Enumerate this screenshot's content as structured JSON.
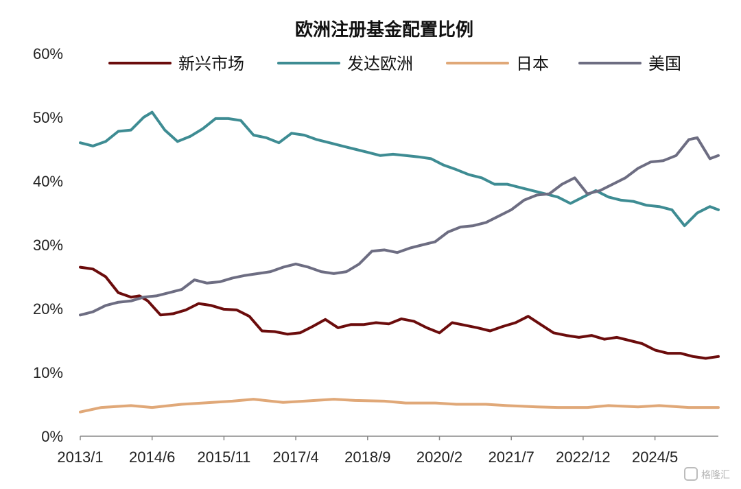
{
  "chart_data": {
    "type": "line",
    "title": "欧洲注册基金配置比例",
    "xlabel": "",
    "ylabel": "",
    "x_start": "2013/1",
    "x_end": "2025/8",
    "x_step": "month",
    "x_tick_labels": [
      "2013/1",
      "2014/6",
      "2015/11",
      "2017/4",
      "2018/9",
      "2020/2",
      "2021/7",
      "2022/12",
      "2024/5"
    ],
    "y_tick_labels": [
      "0%",
      "10%",
      "20%",
      "30%",
      "40%",
      "50%",
      "60%"
    ],
    "ylim": [
      0,
      60
    ],
    "y_unit": "%",
    "grid": false,
    "legend_position": "top",
    "series": [
      {
        "name": "新兴市场",
        "color": "#6b0c0c",
        "points": [
          [
            "2013/1",
            26.5
          ],
          [
            "2013/4",
            26.2
          ],
          [
            "2013/7",
            25.0
          ],
          [
            "2013/10",
            22.5
          ],
          [
            "2014/1",
            21.8
          ],
          [
            "2014/3",
            22.0
          ],
          [
            "2014/5",
            21.2
          ],
          [
            "2014/8",
            19.0
          ],
          [
            "2014/11",
            19.2
          ],
          [
            "2015/2",
            19.8
          ],
          [
            "2015/5",
            20.8
          ],
          [
            "2015/8",
            20.5
          ],
          [
            "2015/11",
            19.9
          ],
          [
            "2016/2",
            19.8
          ],
          [
            "2016/5",
            18.8
          ],
          [
            "2016/8",
            16.5
          ],
          [
            "2016/11",
            16.4
          ],
          [
            "2017/2",
            16.0
          ],
          [
            "2017/5",
            16.2
          ],
          [
            "2017/8",
            17.2
          ],
          [
            "2017/11",
            18.3
          ],
          [
            "2018/2",
            17.0
          ],
          [
            "2018/5",
            17.5
          ],
          [
            "2018/8",
            17.5
          ],
          [
            "2018/11",
            17.8
          ],
          [
            "2019/2",
            17.6
          ],
          [
            "2019/5",
            18.4
          ],
          [
            "2019/8",
            18.0
          ],
          [
            "2019/11",
            17.0
          ],
          [
            "2020/2",
            16.2
          ],
          [
            "2020/5",
            17.8
          ],
          [
            "2020/8",
            17.4
          ],
          [
            "2020/11",
            17.0
          ],
          [
            "2021/2",
            16.5
          ],
          [
            "2021/5",
            17.2
          ],
          [
            "2021/8",
            17.8
          ],
          [
            "2021/11",
            18.8
          ],
          [
            "2022/2",
            17.5
          ],
          [
            "2022/5",
            16.2
          ],
          [
            "2022/8",
            15.8
          ],
          [
            "2022/11",
            15.5
          ],
          [
            "2023/2",
            15.8
          ],
          [
            "2023/5",
            15.2
          ],
          [
            "2023/8",
            15.5
          ],
          [
            "2023/11",
            15.0
          ],
          [
            "2024/2",
            14.5
          ],
          [
            "2024/5",
            13.5
          ],
          [
            "2024/8",
            13.0
          ],
          [
            "2024/11",
            13.0
          ],
          [
            "2025/2",
            12.5
          ],
          [
            "2025/5",
            12.2
          ],
          [
            "2025/8",
            12.5
          ]
        ]
      },
      {
        "name": "发达欧洲",
        "color": "#3e8c93",
        "points": [
          [
            "2013/1",
            46.0
          ],
          [
            "2013/4",
            45.5
          ],
          [
            "2013/7",
            46.2
          ],
          [
            "2013/10",
            47.8
          ],
          [
            "2014/1",
            48.0
          ],
          [
            "2014/4",
            50.0
          ],
          [
            "2014/6",
            50.8
          ],
          [
            "2014/9",
            48.0
          ],
          [
            "2014/12",
            46.2
          ],
          [
            "2015/3",
            47.0
          ],
          [
            "2015/6",
            48.2
          ],
          [
            "2015/9",
            49.8
          ],
          [
            "2015/12",
            49.8
          ],
          [
            "2016/3",
            49.5
          ],
          [
            "2016/6",
            47.2
          ],
          [
            "2016/9",
            46.8
          ],
          [
            "2016/12",
            46.0
          ],
          [
            "2017/3",
            47.5
          ],
          [
            "2017/6",
            47.2
          ],
          [
            "2017/9",
            46.5
          ],
          [
            "2017/12",
            46.0
          ],
          [
            "2018/3",
            45.5
          ],
          [
            "2018/6",
            45.0
          ],
          [
            "2018/9",
            44.5
          ],
          [
            "2018/12",
            44.0
          ],
          [
            "2019/3",
            44.2
          ],
          [
            "2019/6",
            44.0
          ],
          [
            "2019/9",
            43.8
          ],
          [
            "2019/12",
            43.5
          ],
          [
            "2020/3",
            42.5
          ],
          [
            "2020/6",
            41.8
          ],
          [
            "2020/9",
            41.0
          ],
          [
            "2020/12",
            40.5
          ],
          [
            "2021/3",
            39.5
          ],
          [
            "2021/6",
            39.5
          ],
          [
            "2021/9",
            39.0
          ],
          [
            "2021/12",
            38.5
          ],
          [
            "2022/3",
            38.0
          ],
          [
            "2022/6",
            37.5
          ],
          [
            "2022/9",
            36.5
          ],
          [
            "2022/12",
            37.5
          ],
          [
            "2023/3",
            38.5
          ],
          [
            "2023/6",
            37.5
          ],
          [
            "2023/9",
            37.0
          ],
          [
            "2023/12",
            36.8
          ],
          [
            "2024/3",
            36.2
          ],
          [
            "2024/6",
            36.0
          ],
          [
            "2024/9",
            35.5
          ],
          [
            "2024/12",
            33.0
          ],
          [
            "2025/3",
            35.0
          ],
          [
            "2025/6",
            36.0
          ],
          [
            "2025/8",
            35.5
          ]
        ]
      },
      {
        "name": "日本",
        "color": "#e0a878",
        "points": [
          [
            "2013/1",
            3.8
          ],
          [
            "2013/6",
            4.5
          ],
          [
            "2014/1",
            4.8
          ],
          [
            "2014/6",
            4.5
          ],
          [
            "2015/1",
            5.0
          ],
          [
            "2015/6",
            5.2
          ],
          [
            "2016/1",
            5.5
          ],
          [
            "2016/6",
            5.8
          ],
          [
            "2017/1",
            5.3
          ],
          [
            "2017/6",
            5.5
          ],
          [
            "2018/1",
            5.8
          ],
          [
            "2018/6",
            5.6
          ],
          [
            "2019/1",
            5.5
          ],
          [
            "2019/6",
            5.2
          ],
          [
            "2020/1",
            5.2
          ],
          [
            "2020/6",
            5.0
          ],
          [
            "2021/1",
            5.0
          ],
          [
            "2021/6",
            4.8
          ],
          [
            "2022/1",
            4.6
          ],
          [
            "2022/6",
            4.5
          ],
          [
            "2023/1",
            4.5
          ],
          [
            "2023/6",
            4.8
          ],
          [
            "2024/1",
            4.6
          ],
          [
            "2024/6",
            4.8
          ],
          [
            "2025/1",
            4.5
          ],
          [
            "2025/8",
            4.5
          ]
        ]
      },
      {
        "name": "美国",
        "color": "#6d6d82",
        "points": [
          [
            "2013/1",
            19.0
          ],
          [
            "2013/4",
            19.5
          ],
          [
            "2013/7",
            20.5
          ],
          [
            "2013/10",
            21.0
          ],
          [
            "2014/1",
            21.2
          ],
          [
            "2014/4",
            21.8
          ],
          [
            "2014/7",
            22.0
          ],
          [
            "2014/10",
            22.5
          ],
          [
            "2015/1",
            23.0
          ],
          [
            "2015/4",
            24.5
          ],
          [
            "2015/7",
            24.0
          ],
          [
            "2015/10",
            24.2
          ],
          [
            "2016/1",
            24.8
          ],
          [
            "2016/4",
            25.2
          ],
          [
            "2016/7",
            25.5
          ],
          [
            "2016/10",
            25.8
          ],
          [
            "2017/1",
            26.5
          ],
          [
            "2017/4",
            27.0
          ],
          [
            "2017/7",
            26.5
          ],
          [
            "2017/10",
            25.8
          ],
          [
            "2018/1",
            25.5
          ],
          [
            "2018/4",
            25.8
          ],
          [
            "2018/7",
            27.0
          ],
          [
            "2018/10",
            29.0
          ],
          [
            "2019/1",
            29.2
          ],
          [
            "2019/4",
            28.8
          ],
          [
            "2019/7",
            29.5
          ],
          [
            "2019/10",
            30.0
          ],
          [
            "2020/1",
            30.5
          ],
          [
            "2020/4",
            32.0
          ],
          [
            "2020/7",
            32.8
          ],
          [
            "2020/10",
            33.0
          ],
          [
            "2021/1",
            33.5
          ],
          [
            "2021/4",
            34.5
          ],
          [
            "2021/7",
            35.5
          ],
          [
            "2021/10",
            37.0
          ],
          [
            "2022/1",
            37.8
          ],
          [
            "2022/4",
            38.0
          ],
          [
            "2022/7",
            39.5
          ],
          [
            "2022/10",
            40.5
          ],
          [
            "2023/1",
            38.0
          ],
          [
            "2023/4",
            38.5
          ],
          [
            "2023/7",
            39.5
          ],
          [
            "2023/10",
            40.5
          ],
          [
            "2024/1",
            42.0
          ],
          [
            "2024/4",
            43.0
          ],
          [
            "2024/7",
            43.2
          ],
          [
            "2024/10",
            44.0
          ],
          [
            "2025/1",
            46.5
          ],
          [
            "2025/3",
            46.8
          ],
          [
            "2025/6",
            43.5
          ],
          [
            "2025/8",
            44.0
          ]
        ]
      }
    ]
  },
  "watermark": "格隆汇"
}
